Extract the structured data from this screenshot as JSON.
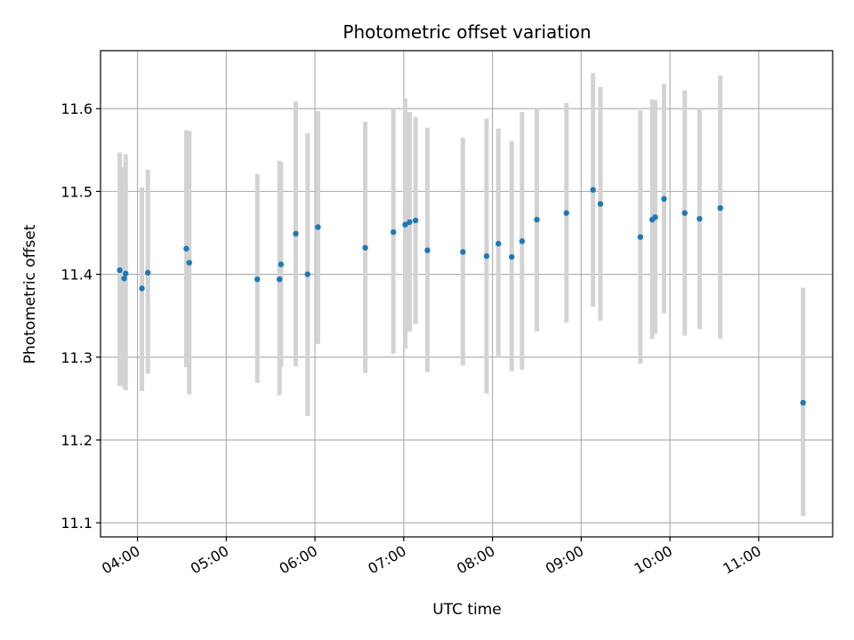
{
  "chart_data": {
    "type": "scatter",
    "title": "Photometric offset variation",
    "xlabel": "UTC time",
    "ylabel": "Photometric offset",
    "x_ticks": [
      "04:00",
      "05:00",
      "06:00",
      "07:00",
      "08:00",
      "09:00",
      "10:00",
      "11:00"
    ],
    "y_ticks": [
      "11.1",
      "11.2",
      "11.3",
      "11.4",
      "11.5",
      "11.6"
    ],
    "xlim": [
      "03:35",
      "11:50"
    ],
    "ylim": [
      11.083,
      11.67
    ],
    "grid": true,
    "colors": {
      "marker": "#1f77b4",
      "errorbar": "#d3d3d3",
      "grid": "#b0b0b0"
    },
    "points": [
      {
        "t": "03:48",
        "y": 11.405,
        "lo": 11.265,
        "hi": 11.547
      },
      {
        "t": "03:51",
        "y": 11.395,
        "lo": 11.263,
        "hi": 11.529
      },
      {
        "t": "03:52",
        "y": 11.401,
        "lo": 11.26,
        "hi": 11.545
      },
      {
        "t": "04:03",
        "y": 11.383,
        "lo": 11.259,
        "hi": 11.505
      },
      {
        "t": "04:07",
        "y": 11.402,
        "lo": 11.28,
        "hi": 11.526
      },
      {
        "t": "04:33",
        "y": 11.431,
        "lo": 11.288,
        "hi": 11.574
      },
      {
        "t": "04:35",
        "y": 11.414,
        "lo": 11.255,
        "hi": 11.573
      },
      {
        "t": "05:21",
        "y": 11.394,
        "lo": 11.269,
        "hi": 11.521
      },
      {
        "t": "05:36",
        "y": 11.394,
        "lo": 11.254,
        "hi": 11.537
      },
      {
        "t": "05:37",
        "y": 11.412,
        "lo": 11.288,
        "hi": 11.535
      },
      {
        "t": "05:47",
        "y": 11.449,
        "lo": 11.289,
        "hi": 11.609
      },
      {
        "t": "05:55",
        "y": 11.4,
        "lo": 11.229,
        "hi": 11.57
      },
      {
        "t": "06:02",
        "y": 11.457,
        "lo": 11.316,
        "hi": 11.597
      },
      {
        "t": "06:34",
        "y": 11.432,
        "lo": 11.281,
        "hi": 11.584
      },
      {
        "t": "06:53",
        "y": 11.451,
        "lo": 11.304,
        "hi": 11.6
      },
      {
        "t": "07:01",
        "y": 11.46,
        "lo": 11.31,
        "hi": 11.612
      },
      {
        "t": "07:04",
        "y": 11.463,
        "lo": 11.331,
        "hi": 11.596
      },
      {
        "t": "07:08",
        "y": 11.465,
        "lo": 11.34,
        "hi": 11.59
      },
      {
        "t": "07:16",
        "y": 11.429,
        "lo": 11.282,
        "hi": 11.577
      },
      {
        "t": "07:40",
        "y": 11.427,
        "lo": 11.29,
        "hi": 11.565
      },
      {
        "t": "07:56",
        "y": 11.422,
        "lo": 11.256,
        "hi": 11.588
      },
      {
        "t": "08:04",
        "y": 11.437,
        "lo": 11.3,
        "hi": 11.576
      },
      {
        "t": "08:13",
        "y": 11.421,
        "lo": 11.283,
        "hi": 11.561
      },
      {
        "t": "08:20",
        "y": 11.44,
        "lo": 11.285,
        "hi": 11.596
      },
      {
        "t": "08:30",
        "y": 11.466,
        "lo": 11.331,
        "hi": 11.6
      },
      {
        "t": "08:50",
        "y": 11.474,
        "lo": 11.342,
        "hi": 11.607
      },
      {
        "t": "09:08",
        "y": 11.502,
        "lo": 11.361,
        "hi": 11.643
      },
      {
        "t": "09:13",
        "y": 11.485,
        "lo": 11.344,
        "hi": 11.626
      },
      {
        "t": "09:40",
        "y": 11.445,
        "lo": 11.292,
        "hi": 11.598
      },
      {
        "t": "09:48",
        "y": 11.466,
        "lo": 11.322,
        "hi": 11.611
      },
      {
        "t": "09:50",
        "y": 11.469,
        "lo": 11.328,
        "hi": 11.61
      },
      {
        "t": "09:56",
        "y": 11.491,
        "lo": 11.353,
        "hi": 11.63
      },
      {
        "t": "10:10",
        "y": 11.474,
        "lo": 11.326,
        "hi": 11.622
      },
      {
        "t": "10:20",
        "y": 11.467,
        "lo": 11.334,
        "hi": 11.6
      },
      {
        "t": "10:34",
        "y": 11.48,
        "lo": 11.322,
        "hi": 11.64
      },
      {
        "t": "11:30",
        "y": 11.245,
        "lo": 11.108,
        "hi": 11.384
      }
    ]
  }
}
